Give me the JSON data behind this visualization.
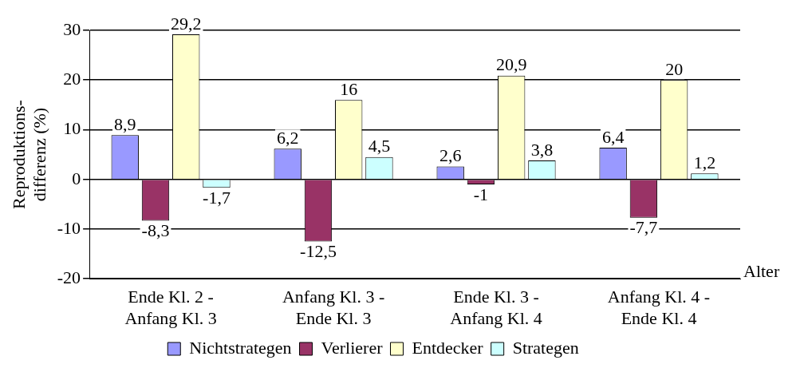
{
  "chart_data": {
    "type": "bar",
    "xlabel": "Alter",
    "ylabel": "Reproduktions-\ndifferenz (%)",
    "categories": [
      "Ende Kl. 2 -\nAnfang Kl. 3",
      "Anfang Kl. 3 -\nEnde Kl. 3",
      "Ende Kl. 3 -\nAnfang Kl. 4",
      "Anfang Kl. 4 -\nEnde Kl. 4"
    ],
    "series": [
      {
        "name": "Nichtstrategen",
        "color": "#9999ff",
        "values": [
          8.9,
          6.2,
          2.6,
          6.4
        ],
        "value_labels": [
          "8,9",
          "6,2",
          "2,6",
          "6,4"
        ]
      },
      {
        "name": "Verlierer",
        "color": "#993366",
        "values": [
          -8.3,
          -12.5,
          -1,
          -7.7
        ],
        "value_labels": [
          "-8,3",
          "-12,5",
          "-1",
          "-7,7"
        ]
      },
      {
        "name": "Entdecker",
        "color": "#ffffcc",
        "values": [
          29.2,
          16,
          20.9,
          20
        ],
        "value_labels": [
          "29,2",
          "16",
          "20,9",
          "20"
        ]
      },
      {
        "name": "Strategen",
        "color": "#ccffff",
        "values": [
          -1.7,
          4.5,
          3.8,
          1.2
        ],
        "value_labels": [
          "-1,7",
          "4,5",
          "3,8",
          "1,2"
        ]
      }
    ],
    "ylim": [
      -20,
      30
    ],
    "yticks": [
      -20,
      -10,
      0,
      10,
      20,
      30
    ],
    "grid": "y",
    "legend": "bottom"
  }
}
